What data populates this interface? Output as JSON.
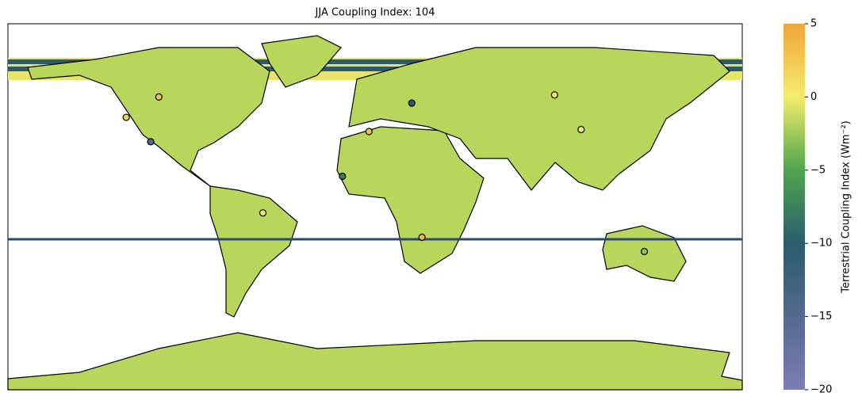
{
  "title": "JJA Coupling Index: 104",
  "colorbar": {
    "label": "Terrestrial Coupling Index (Wm⁻²)",
    "lim": [
      -20,
      5
    ],
    "ticks": [
      5,
      0,
      {
        "value": -5,
        "label": "−5"
      },
      {
        "value": -10,
        "label": "−10"
      },
      {
        "value": -15,
        "label": "−15"
      },
      {
        "value": -20,
        "label": "−20"
      }
    ],
    "colors": [
      "#7b7fb5",
      "#56698f",
      "#2b5b6c",
      "#4fa54f",
      "#f3ec6c",
      "#f0a53a"
    ]
  },
  "stations": [
    {
      "lon": -106,
      "lat": 54,
      "value": 3
    },
    {
      "lon": -122,
      "lat": 44,
      "value": 2
    },
    {
      "lon": -110,
      "lat": 32,
      "value": -15
    },
    {
      "lon": -55,
      "lat": -3,
      "value": 0
    },
    {
      "lon": 23,
      "lat": -15,
      "value": 4
    },
    {
      "lon": -3,
      "lat": 37,
      "value": 3
    },
    {
      "lon": 88,
      "lat": 55,
      "value": 1
    },
    {
      "lon": 101,
      "lat": 38,
      "value": 0
    },
    {
      "lon": 132,
      "lat": -22,
      "value": -3
    },
    {
      "lon": -16,
      "lat": 15,
      "value": -8
    },
    {
      "lon": 18,
      "lat": 51,
      "value": -10
    }
  ]
}
